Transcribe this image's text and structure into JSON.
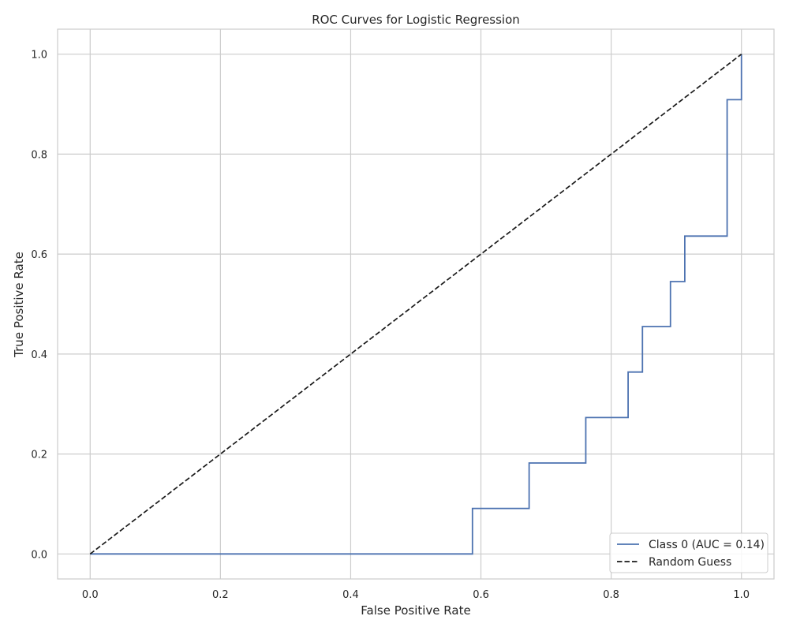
{
  "chart_data": {
    "type": "line",
    "title": "ROC Curves for Logistic Regression",
    "xlabel": "False Positive Rate",
    "ylabel": "True Positive Rate",
    "xlim": [
      -0.05,
      1.05
    ],
    "ylim": [
      -0.05,
      1.05
    ],
    "xticks": [
      0.0,
      0.2,
      0.4,
      0.6,
      0.8,
      1.0
    ],
    "yticks": [
      0.0,
      0.2,
      0.4,
      0.6,
      0.8,
      1.0
    ],
    "xtick_labels": [
      "0.0",
      "0.2",
      "0.4",
      "0.6",
      "0.8",
      "1.0"
    ],
    "ytick_labels": [
      "0.0",
      "0.2",
      "0.4",
      "0.6",
      "0.8",
      "1.0"
    ],
    "grid": true,
    "legend_position": "bottom-right",
    "series": [
      {
        "name": "Class 0 (AUC = 0.14)",
        "color": "#4c72b0",
        "style": "solid",
        "x": [
          0.0,
          0.587,
          0.587,
          0.674,
          0.674,
          0.761,
          0.761,
          0.826,
          0.826,
          0.848,
          0.848,
          0.891,
          0.891,
          0.913,
          0.913,
          0.978,
          0.978,
          1.0,
          1.0
        ],
        "y": [
          0.0,
          0.0,
          0.091,
          0.091,
          0.182,
          0.182,
          0.273,
          0.273,
          0.364,
          0.364,
          0.455,
          0.455,
          0.545,
          0.545,
          0.636,
          0.636,
          0.909,
          0.909,
          1.0
        ]
      },
      {
        "name": "Random Guess",
        "color": "#1a1a1a",
        "style": "dashed",
        "x": [
          0.0,
          1.0
        ],
        "y": [
          0.0,
          1.0
        ]
      }
    ]
  }
}
